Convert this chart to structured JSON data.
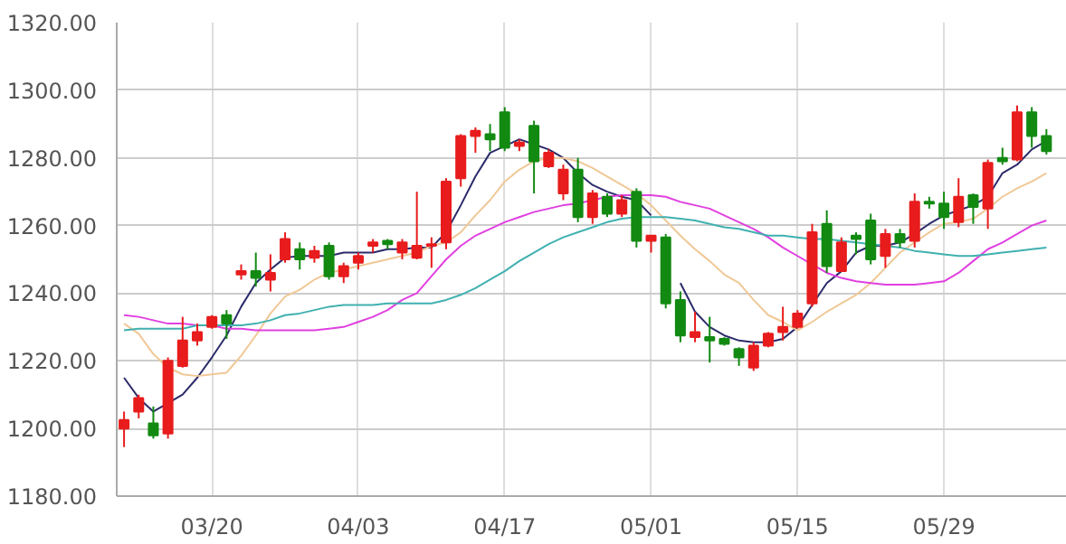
{
  "chart_data": {
    "type": "candlestick",
    "categories": [
      null,
      null,
      null,
      null,
      null,
      null,
      "03/20",
      null,
      null,
      null,
      null,
      null,
      null,
      null,
      null,
      null,
      "04/03",
      null,
      null,
      null,
      null,
      null,
      null,
      null,
      null,
      null,
      "04/17",
      null,
      null,
      null,
      null,
      null,
      null,
      null,
      null,
      null,
      "05/01",
      null,
      null,
      null,
      null,
      null,
      null,
      null,
      null,
      null,
      "05/15",
      null,
      null,
      null,
      null,
      null,
      null,
      null,
      null,
      null,
      "05/29",
      null,
      null,
      null,
      null,
      null,
      null,
      null
    ],
    "ohlc": [
      [
        1200,
        1205,
        1194.5,
        1202.5
      ],
      [
        1205,
        1210,
        1203,
        1209
      ],
      [
        1201.5,
        1206.5,
        1197,
        1198
      ],
      [
        1198.5,
        1221,
        1197,
        1220
      ],
      [
        1218.5,
        1233,
        1218,
        1226
      ],
      [
        1226,
        1231,
        1224.5,
        1228.5
      ],
      [
        1230,
        1233.5,
        1229.5,
        1233
      ],
      [
        1233.5,
        1235,
        1226.5,
        1231
      ],
      [
        1245.5,
        1248.5,
        1244,
        1246.5
      ],
      [
        1246.5,
        1252,
        1242,
        1244.5
      ],
      [
        1244,
        1251.5,
        1240.5,
        1246
      ],
      [
        1250,
        1258,
        1249,
        1256
      ],
      [
        1253,
        1255,
        1247,
        1250
      ],
      [
        1250.5,
        1254,
        1249,
        1252.5
      ],
      [
        1254,
        1255,
        1244,
        1245
      ],
      [
        1245,
        1249,
        1243,
        1248
      ],
      [
        1249,
        1252,
        1247,
        1251
      ],
      [
        1254,
        1256,
        1252,
        1255
      ],
      [
        1255.5,
        1256,
        1253,
        1254.5
      ],
      [
        1252,
        1256,
        1250,
        1255
      ],
      [
        1250.5,
        1270,
        1250,
        1254
      ],
      [
        1254,
        1256.5,
        1247.5,
        1254.5
      ],
      [
        1255,
        1274,
        1253,
        1273
      ],
      [
        1274,
        1287,
        1271.5,
        1286.5
      ],
      [
        1286.5,
        1289,
        1281.5,
        1288
      ],
      [
        1287,
        1290,
        1282,
        1285.5
      ],
      [
        1293.5,
        1295,
        1282,
        1283
      ],
      [
        1283.5,
        1285.5,
        1282,
        1284.5
      ],
      [
        1289.5,
        1291,
        1269.5,
        1279
      ],
      [
        1277.5,
        1282.5,
        1277,
        1281.5
      ],
      [
        1269.5,
        1278,
        1267.5,
        1276.5
      ],
      [
        1276.5,
        1280,
        1261,
        1262.5
      ],
      [
        1262.5,
        1270.5,
        1260.5,
        1269.5
      ],
      [
        1268.5,
        1269.5,
        1262.5,
        1263.5
      ],
      [
        1263.5,
        1269,
        1262.5,
        1267.5
      ],
      [
        1270,
        1271,
        1253.5,
        1255.5
      ],
      [
        1255.5,
        1257,
        1252,
        1257
      ],
      [
        1256.5,
        1257.5,
        1235.5,
        1237
      ],
      [
        1238,
        1240.5,
        1225.5,
        1227.5
      ],
      [
        1227,
        1234.5,
        1225.5,
        1228.5
      ],
      [
        1227,
        1233,
        1219.5,
        1226
      ],
      [
        1226.5,
        1227,
        1224.5,
        1225
      ],
      [
        1223.5,
        1224,
        1218.5,
        1221
      ],
      [
        1218,
        1225.5,
        1217,
        1224.5
      ],
      [
        1224.5,
        1228.5,
        1224,
        1228
      ],
      [
        1228.5,
        1236,
        1226,
        1230
      ],
      [
        1230,
        1235,
        1229.5,
        1234
      ],
      [
        1237,
        1260.5,
        1236,
        1258
      ],
      [
        1260.5,
        1264.5,
        1246,
        1248
      ],
      [
        1246.5,
        1256.5,
        1246.5,
        1255
      ],
      [
        1257,
        1258,
        1251.5,
        1256
      ],
      [
        1261.5,
        1263.5,
        1248.5,
        1250
      ],
      [
        1251,
        1259,
        1247.5,
        1257.5
      ],
      [
        1257.5,
        1259,
        1253.5,
        1255
      ],
      [
        1255.5,
        1269.5,
        1253.5,
        1267
      ],
      [
        1267,
        1268.5,
        1265,
        1266.5
      ],
      [
        1266.5,
        1270,
        1259,
        1262.5
      ],
      [
        1261,
        1274,
        1259.5,
        1268.5
      ],
      [
        1269,
        1269.5,
        1260.5,
        1265.5
      ],
      [
        1265,
        1279.5,
        1259,
        1278.5
      ],
      [
        1280,
        1283,
        1278,
        1279
      ],
      [
        1279.5,
        1295.5,
        1279,
        1293.5
      ],
      [
        1293.5,
        1295,
        1283,
        1286.5
      ],
      [
        1286.5,
        1288.5,
        1281,
        1282
      ]
    ],
    "colors": [
      "#e81c1c",
      "#e81c1c",
      "#128a12",
      "#e81c1c",
      "#e81c1c",
      "#e81c1c",
      "#e81c1c",
      "#128a12",
      "#e81c1c",
      "#128a12",
      "#e81c1c",
      "#e81c1c",
      "#128a12",
      "#e81c1c",
      "#128a12",
      "#e81c1c",
      "#e81c1c",
      "#e81c1c",
      "#128a12",
      "#e81c1c",
      "#e81c1c",
      "#e81c1c",
      "#e81c1c",
      "#e81c1c",
      "#e81c1c",
      "#128a12",
      "#128a12",
      "#e81c1c",
      "#128a12",
      "#e81c1c",
      "#e81c1c",
      "#128a12",
      "#e81c1c",
      "#128a12",
      "#e81c1c",
      "#128a12",
      "#e81c1c",
      "#128a12",
      "#128a12",
      "#e81c1c",
      "#128a12",
      "#128a12",
      "#128a12",
      "#e81c1c",
      "#e81c1c",
      "#e81c1c",
      "#e81c1c",
      "#e81c1c",
      "#128a12",
      "#e81c1c",
      "#128a12",
      "#128a12",
      "#e81c1c",
      "#128a12",
      "#e81c1c",
      "#128a12",
      "#128a12",
      "#e81c1c",
      "#128a12",
      "#e81c1c",
      "#128a12",
      "#e81c1c",
      "#128a12",
      "#128a12"
    ],
    "series": [
      {
        "type": "line",
        "color": "#2b2b6b",
        "values": [
          1215,
          1209,
          1205,
          1207.5,
          1210,
          1215,
          1221,
          1227.5,
          1236,
          1243,
          1247,
          1250.5,
          1251,
          1251,
          1251,
          1252,
          1252,
          1252,
          1253,
          1253,
          1253.5,
          1253.5,
          1258,
          1266,
          1274.5,
          1281.5,
          1283.5,
          1285.5,
          1284,
          1282.5,
          1280,
          1275.5,
          1272,
          1270,
          1268.5,
          1267.5,
          1263,
          null,
          1243,
          1234.5,
          1230,
          1227.5,
          1226,
          1225.5,
          1225.5,
          1226.5,
          1230,
          1236.5,
          1243,
          1246.5,
          1252,
          1254,
          1254,
          1255,
          1257.5,
          1260.5,
          1263,
          1264.5,
          1266,
          1268.5,
          1275.5,
          1278,
          1282.5,
          1285
        ]
      },
      {
        "type": "line",
        "color": "#f0c896",
        "values": [
          1231,
          1228,
          1222,
          1218,
          1216,
          1215.5,
          1216,
          1216.5,
          1221.5,
          1227.5,
          1234,
          1239,
          1241,
          1244,
          1246,
          1247,
          1248,
          1249,
          1250,
          1251,
          1252,
          1254,
          1255,
          1258,
          1263,
          1267.5,
          1273,
          1276.5,
          1279,
          1280,
          1280,
          1279,
          1277,
          1274.5,
          1272,
          1269.5,
          1266,
          1261.5,
          1257,
          1253,
          1249.5,
          1245.5,
          1243,
          1238,
          1233.5,
          1231.5,
          1229,
          1231.5,
          1234.5,
          1237,
          1239.5,
          1243,
          1247.5,
          1252,
          1255,
          1258,
          1260.5,
          1261,
          1262,
          1265,
          1268.5,
          1271,
          1273,
          1275.5
        ]
      },
      {
        "type": "line",
        "color": "#e040e0",
        "values": [
          1233.5,
          1233,
          1232,
          1231,
          1231,
          1230.5,
          1230.5,
          1229.5,
          1229.5,
          1229,
          1229,
          1229,
          1229,
          1229,
          1229.5,
          1230,
          1231.5,
          1233,
          1235,
          1238,
          1240,
          1245,
          1250,
          1254,
          1257,
          1259,
          1261,
          1262.5,
          1264,
          1265,
          1266,
          1266.5,
          1267.5,
          1268.5,
          1269,
          1269,
          1269,
          1268.5,
          1267,
          1266,
          1265,
          1263,
          1261,
          1259,
          1256.5,
          1253.5,
          1251,
          1248.5,
          1246,
          1244.5,
          1243.5,
          1243,
          1242.5,
          1242.5,
          1242.5,
          1243,
          1243.5,
          1246,
          1249.5,
          1253,
          1255,
          1257.5,
          1260,
          1261.5
        ]
      },
      {
        "type": "line",
        "color": "#40b0b0",
        "values": [
          1229,
          1229.5,
          1229.5,
          1229.5,
          1229.5,
          1230.5,
          1230.5,
          1230.5,
          1230.5,
          1231,
          1232,
          1233.5,
          1234,
          1235,
          1236,
          1236.5,
          1236.5,
          1236.5,
          1237,
          1237,
          1237,
          1237,
          1238,
          1239.5,
          1241.5,
          1244,
          1246.5,
          1249.5,
          1252,
          1254.5,
          1256.5,
          1258,
          1259.5,
          1261,
          1262,
          1262.5,
          1262.5,
          1262.5,
          1262,
          1261.5,
          1260.5,
          1259.5,
          1259,
          1258,
          1257,
          1257,
          1256.5,
          1256,
          1256,
          1255.5,
          1255,
          1254.5,
          1254,
          1253.5,
          1252.5,
          1252,
          1251.5,
          1251,
          1251,
          1251.5,
          1252,
          1252.5,
          1253,
          1253.5
        ]
      }
    ],
    "ylim": [
      1180,
      1320
    ],
    "yticks": [
      {
        "value": 1180,
        "label": "1180.00"
      },
      {
        "value": 1200,
        "label": "1200.00"
      },
      {
        "value": 1220,
        "label": "1220.00"
      },
      {
        "value": 1240,
        "label": "1240.00"
      },
      {
        "value": 1260,
        "label": "1260.00"
      },
      {
        "value": 1280,
        "label": "1280.00"
      },
      {
        "value": 1300,
        "label": "1300.00"
      },
      {
        "value": 1320,
        "label": "1320.00"
      }
    ],
    "grid": true
  }
}
